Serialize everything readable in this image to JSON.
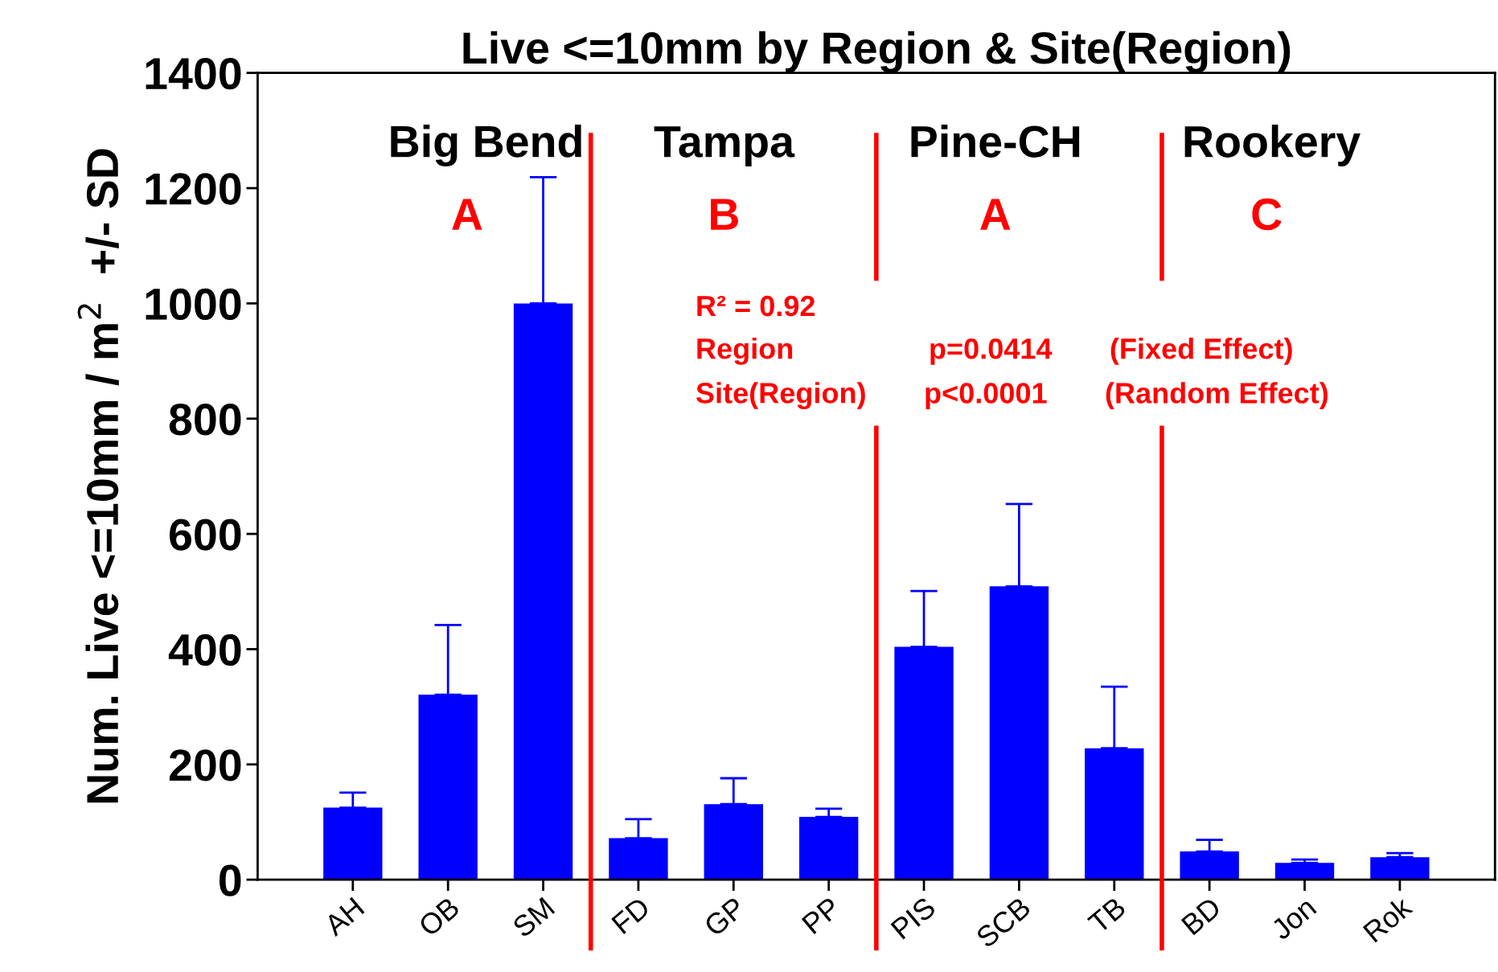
{
  "chart_data": {
    "type": "bar",
    "title": "Live <=10mm by Region & Site(Region)",
    "ylabel": "Num. Live <=10mm / m$^{2}$  +/- SD",
    "categories": [
      "AH",
      "OB",
      "SM",
      "FD",
      "GP",
      "PP",
      "PIS",
      "SCB",
      "TB",
      "BD",
      "Jon",
      "Rok"
    ],
    "values": [
      125,
      321,
      1000,
      72,
      131,
      109,
      404,
      509,
      228,
      49,
      29,
      39
    ],
    "errors": [
      [
        125,
        151
      ],
      [
        321,
        442
      ],
      [
        1000,
        1219
      ],
      [
        72,
        105
      ],
      [
        131,
        176
      ],
      [
        109,
        123
      ],
      [
        404,
        501
      ],
      [
        509,
        652
      ],
      [
        228,
        335
      ],
      [
        49,
        69
      ],
      [
        29,
        35
      ],
      [
        39,
        46
      ]
    ],
    "color": "#0000ff",
    "ylim": [
      0,
      1400
    ],
    "yticks": [
      0,
      200,
      400,
      600,
      800,
      1000,
      1200,
      1400
    ],
    "grid": false,
    "annotations": [
      "Big Bend",
      "Tampa",
      "Pine-CH",
      "Rookery",
      "A",
      "B",
      "A",
      "C",
      "R² = 0.92",
      "Region",
      "p=0.0414",
      "(Fixed Effect)",
      "Site(Region)",
      "p<0.0001",
      "(Random Effect)"
    ]
  }
}
